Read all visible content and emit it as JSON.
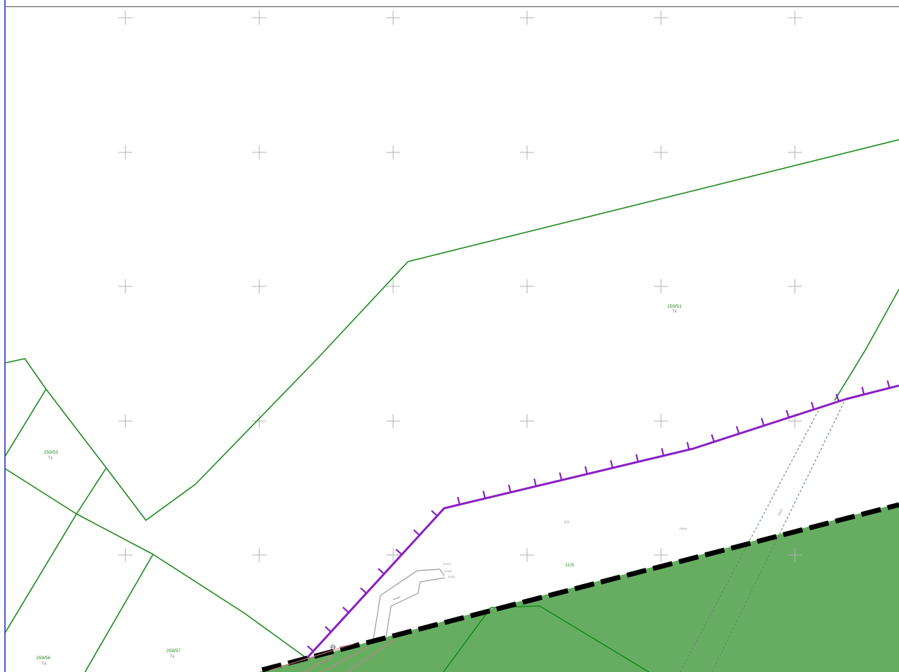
{
  "map": {
    "colors": {
      "frame": "#1f1fd0",
      "parcel_boundary": "#1a8a1a",
      "forest_fill": "#66ad62",
      "boundary_hatched": "#8a1fc2",
      "admin_boundary": "#000000",
      "grid_cross": "#b0b0b0",
      "structure": "#9a9a9a"
    },
    "parcels": [
      {
        "number": "259/51",
        "landuse": "Tk"
      },
      {
        "number": "259/53",
        "landuse": "Tk"
      },
      {
        "number": "259/56",
        "landuse": "Tk"
      },
      {
        "number": "259/57",
        "landuse": "Tk"
      }
    ],
    "forest_parcel": {
      "landuse": "Ls",
      "number": "11/5"
    },
    "elevations": [
      "213,0",
      "213,6",
      "213,6",
      "216,8",
      "215,8"
    ],
    "icons": [
      "grid-cross-icon",
      "control-point-icon",
      "arrow-icon"
    ]
  }
}
